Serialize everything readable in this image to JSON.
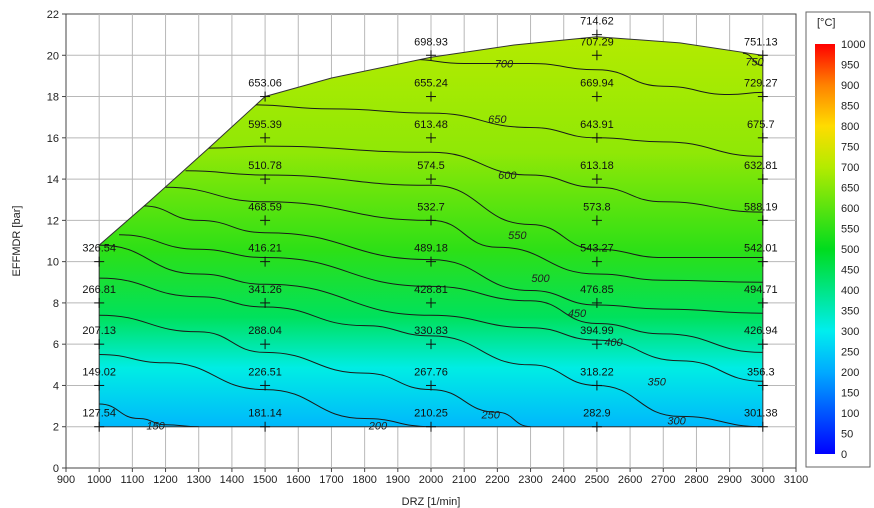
{
  "chart_data": {
    "type": "heatmap",
    "xlabel": "DRZ [1/min]",
    "ylabel": "EFFMDR [bar]",
    "xlim": [
      900,
      3100
    ],
    "ylim": [
      0,
      22
    ],
    "x_ticks": [
      900,
      1000,
      1100,
      1200,
      1300,
      1400,
      1500,
      1600,
      1700,
      1800,
      1900,
      2000,
      2100,
      2200,
      2300,
      2400,
      2500,
      2600,
      2700,
      2800,
      2900,
      3000,
      3100
    ],
    "y_ticks": [
      0,
      2,
      4,
      6,
      8,
      10,
      12,
      14,
      16,
      18,
      20,
      22
    ],
    "grid": true,
    "colorbar": {
      "unit": "[°C]",
      "min": 0,
      "max": 1000,
      "ticks": [
        "1000",
        "950",
        "900",
        "850",
        "800",
        "750",
        "700",
        "650",
        "600",
        "550",
        "500",
        "450",
        "400",
        "350",
        "300",
        "250",
        "200",
        "150",
        "100",
        "50",
        "0"
      ]
    },
    "points": [
      {
        "x": 1000,
        "y": 2,
        "label": "127.54"
      },
      {
        "x": 1000,
        "y": 4,
        "label": "149.02"
      },
      {
        "x": 1000,
        "y": 6,
        "label": "207.13"
      },
      {
        "x": 1000,
        "y": 8,
        "label": "266.81"
      },
      {
        "x": 1000,
        "y": 10,
        "label": "326.54"
      },
      {
        "x": 1500,
        "y": 2,
        "label": "181.14"
      },
      {
        "x": 1500,
        "y": 4,
        "label": "226.51"
      },
      {
        "x": 1500,
        "y": 6,
        "label": "288.04"
      },
      {
        "x": 1500,
        "y": 8,
        "label": "341.26"
      },
      {
        "x": 1500,
        "y": 10,
        "label": "416.21"
      },
      {
        "x": 1500,
        "y": 12,
        "label": "468.59"
      },
      {
        "x": 1500,
        "y": 14,
        "label": "510.78"
      },
      {
        "x": 1500,
        "y": 16,
        "label": "595.39"
      },
      {
        "x": 1500,
        "y": 18,
        "label": "653.06"
      },
      {
        "x": 2000,
        "y": 2,
        "label": "210.25"
      },
      {
        "x": 2000,
        "y": 4,
        "label": "267.76"
      },
      {
        "x": 2000,
        "y": 6,
        "label": "330.83"
      },
      {
        "x": 2000,
        "y": 8,
        "label": "428.81"
      },
      {
        "x": 2000,
        "y": 10,
        "label": "489.18"
      },
      {
        "x": 2000,
        "y": 12,
        "label": "532.7"
      },
      {
        "x": 2000,
        "y": 14,
        "label": "574.5"
      },
      {
        "x": 2000,
        "y": 16,
        "label": "613.48"
      },
      {
        "x": 2000,
        "y": 18,
        "label": "655.24"
      },
      {
        "x": 2000,
        "y": 20,
        "label": "698.93"
      },
      {
        "x": 2500,
        "y": 2,
        "label": "282.9"
      },
      {
        "x": 2500,
        "y": 4,
        "label": "318.22"
      },
      {
        "x": 2500,
        "y": 6,
        "label": "394.99"
      },
      {
        "x": 2500,
        "y": 8,
        "label": "476.85"
      },
      {
        "x": 2500,
        "y": 10,
        "label": "543.27"
      },
      {
        "x": 2500,
        "y": 12,
        "label": "573.8"
      },
      {
        "x": 2500,
        "y": 14,
        "label": "613.18"
      },
      {
        "x": 2500,
        "y": 16,
        "label": "643.91"
      },
      {
        "x": 2500,
        "y": 18,
        "label": "669.94"
      },
      {
        "x": 2500,
        "y": 20,
        "label": "707.29"
      },
      {
        "x": 2500,
        "y": 21,
        "label": "714.62"
      },
      {
        "x": 3000,
        "y": 2,
        "label": "301.38"
      },
      {
        "x": 3000,
        "y": 4,
        "label": "356.3"
      },
      {
        "x": 3000,
        "y": 6,
        "label": "426.94"
      },
      {
        "x": 3000,
        "y": 8,
        "label": "494.71"
      },
      {
        "x": 3000,
        "y": 10,
        "label": "542.01"
      },
      {
        "x": 3000,
        "y": 12,
        "label": "588.19"
      },
      {
        "x": 3000,
        "y": 14,
        "label": "632.81"
      },
      {
        "x": 3000,
        "y": 16,
        "label": "675.7"
      },
      {
        "x": 3000,
        "y": 18,
        "label": "729.27"
      },
      {
        "x": 3000,
        "y": 20,
        "label": "751.13"
      }
    ],
    "boundary": [
      [
        1000,
        2
      ],
      [
        1000,
        10.8
      ],
      [
        1150,
        12.9
      ],
      [
        1330,
        15.5
      ],
      [
        1500,
        18
      ],
      [
        1700,
        18.9
      ],
      [
        2000,
        19.9
      ],
      [
        2250,
        20.5
      ],
      [
        2500,
        20.9
      ],
      [
        2750,
        20.6
      ],
      [
        3000,
        20
      ],
      [
        3000,
        2
      ]
    ],
    "contours": [
      {
        "level": "150",
        "x": [
          1000,
          1120,
          1200,
          1300
        ],
        "y": [
          3.1,
          2.4,
          2.1,
          2.0
        ],
        "label_at": [
          1170,
          2.05
        ]
      },
      {
        "level": "200",
        "x": [
          1000,
          1200,
          1500,
          1800,
          2000
        ],
        "y": [
          5.5,
          5.1,
          3.8,
          2.4,
          2.0
        ],
        "label_at": [
          1840,
          2.05
        ]
      },
      {
        "level": "250",
        "x": [
          1000,
          1300,
          1500,
          1800,
          2000,
          2200,
          2300
        ],
        "y": [
          7.4,
          6.6,
          5.6,
          4.6,
          3.8,
          2.7,
          2.0
        ],
        "label_at": [
          2180,
          2.6
        ]
      },
      {
        "level": "300",
        "x": [
          1000,
          1300,
          1500,
          1800,
          2000,
          2300,
          2500,
          2750,
          3000
        ],
        "y": [
          9.2,
          8.3,
          7.8,
          6.9,
          6.4,
          5.0,
          4.0,
          2.5,
          2.0
        ],
        "label_at": [
          2740,
          2.3
        ]
      },
      {
        "level": "350",
        "x": [
          1000,
          1300,
          1500,
          2000,
          2300,
          2500,
          2750,
          3000
        ],
        "y": [
          10.8,
          9.4,
          8.9,
          7.4,
          6.8,
          6.2,
          5.2,
          4.2
        ],
        "label_at": [
          2680,
          4.2
        ]
      },
      {
        "level": "400",
        "x": [
          1060,
          1300,
          1500,
          2000,
          2300,
          2500,
          2700,
          3000
        ],
        "y": [
          11.3,
          10.6,
          10.2,
          8.8,
          8.1,
          7.0,
          6.5,
          5.6
        ],
        "label_at": [
          2550,
          6.1
        ]
      },
      {
        "level": "450",
        "x": [
          1130,
          1300,
          1500,
          2000,
          2300,
          2500,
          2700,
          3000
        ],
        "y": [
          12.7,
          12.0,
          11.4,
          10.1,
          8.6,
          7.9,
          7.7,
          7.5
        ],
        "label_at": [
          2440,
          7.5
        ]
      },
      {
        "level": "500",
        "x": [
          1200,
          1500,
          2000,
          2200,
          2500,
          2700,
          3000
        ],
        "y": [
          13.6,
          12.9,
          12.0,
          10.7,
          9.4,
          9.1,
          9.0
        ],
        "label_at": [
          2330,
          9.2
        ]
      },
      {
        "level": "550",
        "x": [
          1260,
          1500,
          2000,
          2300,
          2500,
          2700,
          3000
        ],
        "y": [
          14.4,
          14.2,
          13.7,
          11.8,
          10.6,
          10.2,
          10.2
        ],
        "label_at": [
          2260,
          11.3
        ]
      },
      {
        "level": "600",
        "x": [
          1330,
          1500,
          2000,
          2300,
          2500,
          2700,
          3000
        ],
        "y": [
          15.5,
          15.6,
          15.3,
          14.2,
          13.6,
          12.9,
          12.4
        ],
        "label_at": [
          2230,
          14.2
        ]
      },
      {
        "level": "650",
        "x": [
          1460,
          1700,
          2000,
          2300,
          2500,
          2700,
          3000
        ],
        "y": [
          17.6,
          17.4,
          17.2,
          16.5,
          16.0,
          15.8,
          15.1
        ],
        "label_at": [
          2200,
          16.9
        ]
      },
      {
        "level": "700",
        "x": [
          1940,
          2100,
          2300,
          2500,
          2700,
          2900,
          3000
        ],
        "y": [
          19.8,
          19.6,
          19.6,
          19.3,
          18.5,
          18.1,
          18.2
        ],
        "label_at": [
          2220,
          19.6
        ]
      },
      {
        "level": "750",
        "x": [
          2940,
          3000
        ],
        "y": [
          20.1,
          19.5
        ],
        "label_at": [
          2975,
          19.7
        ]
      }
    ]
  }
}
